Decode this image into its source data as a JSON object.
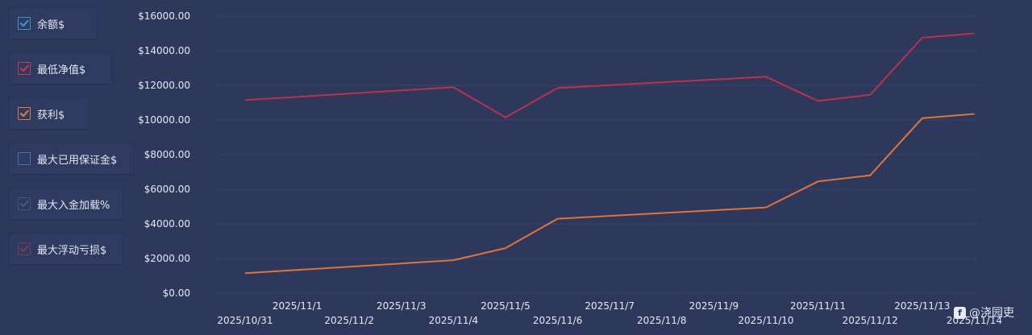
{
  "legend": [
    {
      "label": "余额$",
      "checked": true,
      "color": "#3b95c7"
    },
    {
      "label": "最低净值$",
      "checked": true,
      "color": "#c83a4e"
    },
    {
      "label": "获利$",
      "checked": true,
      "color": "#e07a3c"
    },
    {
      "label": "最大已用保证金$",
      "checked": false,
      "color": "#4a6fb3"
    },
    {
      "label": "最大入金加载%",
      "checked": true,
      "color": "#4a5478"
    },
    {
      "label": "最大浮动亏损$",
      "checked": true,
      "color": "#7a3d52"
    }
  ],
  "watermark": {
    "text": "@浇园吏",
    "icon": "f"
  },
  "chart_data": {
    "type": "line",
    "x": [
      "2025/10/31",
      "2025/11/1",
      "2025/11/2",
      "2025/11/3",
      "2025/11/4",
      "2025/11/5",
      "2025/11/6",
      "2025/11/7",
      "2025/11/8",
      "2025/11/9",
      "2025/11/10",
      "2025/11/11",
      "2025/11/12",
      "2025/11/13",
      "2025/11/14"
    ],
    "ylim": [
      0,
      16000
    ],
    "yticks": [
      "$0.00",
      "$2000.00",
      "$4000.00",
      "$6000.00",
      "$8000.00",
      "$10000.00",
      "$12000.00",
      "$14000.00",
      "$16000.00"
    ],
    "series": [
      {
        "name": "最低净值$",
        "color": "#b9324a",
        "points": [
          [
            "2025/10/31",
            11150
          ],
          [
            "2025/11/4",
            11900
          ],
          [
            "2025/11/5",
            10150
          ],
          [
            "2025/11/6",
            11850
          ],
          [
            "2025/11/10",
            12500
          ],
          [
            "2025/11/11",
            11100
          ],
          [
            "2025/11/12",
            11450
          ],
          [
            "2025/11/13",
            14750
          ],
          [
            "2025/11/14",
            15000
          ]
        ]
      },
      {
        "name": "获利$",
        "color": "#de7438",
        "points": [
          [
            "2025/10/31",
            1150
          ],
          [
            "2025/11/4",
            1900
          ],
          [
            "2025/11/5",
            2600
          ],
          [
            "2025/11/6",
            4300
          ],
          [
            "2025/11/10",
            4950
          ],
          [
            "2025/11/11",
            6450
          ],
          [
            "2025/11/12",
            6800
          ],
          [
            "2025/11/13",
            10100
          ],
          [
            "2025/11/14",
            10350
          ]
        ]
      }
    ],
    "grid": true,
    "legend_position": "left"
  }
}
